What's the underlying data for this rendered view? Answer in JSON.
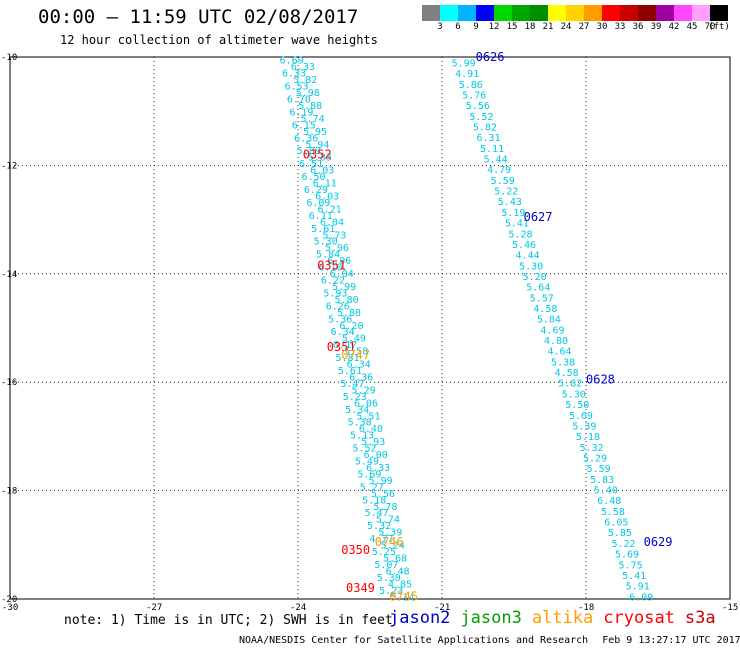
{
  "header": {
    "title": "00:00 — 11:59 UTC 02/08/2017",
    "subtitle": "12 hour collection of altimeter wave heights"
  },
  "legend": {
    "colors": [
      "#808080",
      "#00ffff",
      "#00b4ff",
      "#0000ff",
      "#00d600",
      "#00a600",
      "#008c00",
      "#ffff00",
      "#ffd200",
      "#ff9c00",
      "#ff0000",
      "#c80000",
      "#8c0000",
      "#a000a0",
      "#ff48ff",
      "#ffa0ff",
      "#000000"
    ],
    "labels": [
      "3",
      "6",
      "9",
      "12",
      "15",
      "18",
      "21",
      "24",
      "27",
      "30",
      "33",
      "36",
      "39",
      "42",
      "45",
      "70",
      "(ft)"
    ]
  },
  "map": {
    "lat_labels": [
      "-10",
      "-12",
      "-14",
      "-16",
      "-18",
      "-20"
    ],
    "lon_labels": [
      "-30",
      "-27",
      "-24",
      "-21",
      "-18",
      "-15"
    ],
    "lat_values": [
      -10,
      -12,
      -14,
      -16,
      -18,
      -20
    ],
    "lon_values": [
      -27,
      -24,
      -21,
      -18
    ]
  },
  "chart_data": {
    "type": "scatter",
    "xlim": [
      -30,
      -15
    ],
    "ylim": [
      -20,
      -10
    ],
    "grid": true,
    "units": "ft",
    "tracks": [
      {
        "name": "jason2",
        "color": "#00c8e6",
        "values": [
          "5.99",
          "4.91",
          "5.86",
          "5.76",
          "5.56",
          "5.52",
          "5.82",
          "6.31",
          "5.11",
          "5.44",
          "4.79",
          "5.59",
          "5.22",
          "5.43",
          "5.19",
          "5.41",
          "5.28",
          "5.46",
          "4.44",
          "5.30",
          "5.20",
          "5.64",
          "5.57",
          "4.58",
          "5.84",
          "4.69",
          "4.80",
          "4.64",
          "5.38",
          "4.58",
          "5.82",
          "5.30",
          "5.50",
          "5.69",
          "5.39",
          "5.18",
          "5.32",
          "5.29",
          "5.59",
          "5.83",
          "5.40",
          "6.48",
          "5.58",
          "6.05",
          "5.85",
          "5.22",
          "5.69",
          "5.75",
          "5.41",
          "5.91",
          "6.09"
        ],
        "start": [
          -20.8,
          -10.1
        ],
        "end": [
          -17.1,
          -19.95
        ]
      },
      {
        "name": "altika",
        "color": "#00c8e6",
        "values": [
          "6.69",
          "6.33",
          "6.33",
          "5.82",
          "6.53",
          "5.98",
          "6.70",
          "5.88",
          "6.19",
          "5.74",
          "6.15",
          "5.95",
          "6.36",
          "5.94",
          "5.89",
          "5.83",
          "6.51",
          "6.03",
          "6.50",
          "6.11",
          "6.29",
          "6.03",
          "6.09",
          "6.21",
          "6.11",
          "6.04",
          "5.61",
          "5.73",
          "5.30",
          "5.96",
          "5.84",
          "6.06",
          "6.10",
          "6.04",
          "6.22",
          "5.99",
          "5.93",
          "5.80",
          "6.26",
          "5.88",
          "5.36",
          "6.20",
          "6.34",
          "5.49",
          "6.17",
          "5.58",
          "5.81",
          "6.34",
          "5.61",
          "6.36",
          "5.47",
          "5.29",
          "5.23",
          "6.06",
          "5.34",
          "5.51",
          "5.38",
          "6.40",
          "5.13",
          "5.93",
          "5.52",
          "6.00",
          "5.49",
          "6.33",
          "5.69",
          "5.99",
          "5.27",
          "5.56",
          "5.18",
          "5.78",
          "5.47",
          "5.74",
          "5.32",
          "5.39",
          "4.77",
          "5.24",
          "5.25",
          "5.68",
          "5.07",
          "6.48",
          "5.30",
          "4.85",
          "5.23",
          "5.14"
        ],
        "start": [
          -24.3,
          -10.05
        ],
        "end": [
          -22.2,
          -19.95
        ]
      }
    ],
    "time_labels": [
      {
        "text": "0626",
        "lon": -20.3,
        "lat": -10.0,
        "color": "#0000cc"
      },
      {
        "text": "0627",
        "lon": -19.3,
        "lat": -12.95,
        "color": "#0000cc"
      },
      {
        "text": "0628",
        "lon": -18.0,
        "lat": -15.95,
        "color": "#0000cc"
      },
      {
        "text": "0629",
        "lon": -16.8,
        "lat": -18.95,
        "color": "#0000cc"
      },
      {
        "text": "0352",
        "lon": -23.9,
        "lat": -11.8,
        "color": "#ff0000"
      },
      {
        "text": "0351",
        "lon": -23.6,
        "lat": -13.85,
        "color": "#ff0000"
      },
      {
        "text": "0351",
        "lon": -23.4,
        "lat": -15.35,
        "color": "#ff0000"
      },
      {
        "text": "0747",
        "lon": -23.1,
        "lat": -15.5,
        "color": "#ff9c00"
      },
      {
        "text": "0746",
        "lon": -22.4,
        "lat": -18.95,
        "color": "#ff9c00"
      },
      {
        "text": "0350",
        "lon": -23.1,
        "lat": -19.1,
        "color": "#ff0000"
      },
      {
        "text": "0349",
        "lon": -23.0,
        "lat": -19.8,
        "color": "#ff0000"
      },
      {
        "text": "0745",
        "lon": -22.1,
        "lat": -19.95,
        "color": "#ff9c00"
      }
    ]
  },
  "footer": {
    "note": "note: 1) Time is in UTC; 2) SWH is in feet",
    "satellites": [
      {
        "name": "jason2",
        "color": "#0000cc"
      },
      {
        "name": "jason3",
        "color": "#00a000"
      },
      {
        "name": "altika",
        "color": "#ff9c00"
      },
      {
        "name": "cryosat",
        "color": "#ff0000"
      },
      {
        "name": "s3a",
        "color": "#cc0000"
      }
    ],
    "credit": "NOAA/NESDIS Center for Satellite Applications and Research",
    "timestamp": "Feb  9 13:27:17 UTC 2017"
  }
}
